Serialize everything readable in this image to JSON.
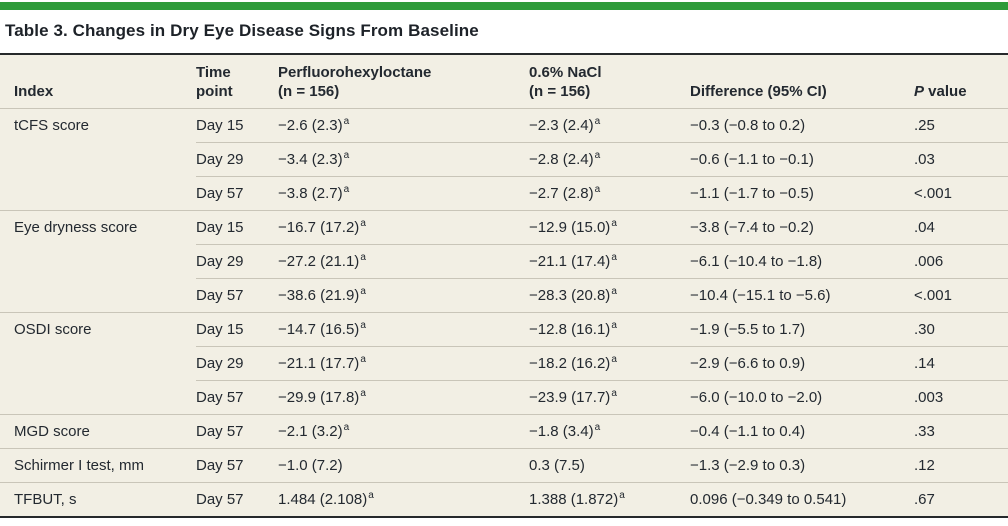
{
  "accent_color": "#2e9b3a",
  "table": {
    "title": "Table 3. Changes in Dry Eye Disease Signs From Baseline",
    "header": {
      "index": "Index",
      "time_line1": "Time",
      "time_line2": "point",
      "pfho_line1": "Perfluorohexyloctane",
      "pfho_line2": "(n = 156)",
      "nacl_line1": "0.6% NaCl",
      "nacl_line2": "(n = 156)",
      "difference": "Difference (95% CI)",
      "p_italic": "P",
      "p_rest": " value"
    },
    "footnote_marker": "a",
    "rows": [
      {
        "index": "tCFS score",
        "time": "Day 15",
        "pfho": "−2.6 (2.3)",
        "pfho_sup": "a",
        "nacl": "−2.3 (2.4)",
        "nacl_sup": "a",
        "diff": "−0.3 (−0.8 to 0.2)",
        "p": ".25"
      },
      {
        "index": "",
        "time": "Day 29",
        "pfho": "−3.4 (2.3)",
        "pfho_sup": "a",
        "nacl": "−2.8 (2.4)",
        "nacl_sup": "a",
        "diff": "−0.6 (−1.1 to −0.1)",
        "p": ".03"
      },
      {
        "index": "",
        "time": "Day 57",
        "pfho": "−3.8 (2.7)",
        "pfho_sup": "a",
        "nacl": "−2.7 (2.8)",
        "nacl_sup": "a",
        "diff": "−1.1 (−1.7 to −0.5)",
        "p": "<.001"
      },
      {
        "index": "Eye dryness score",
        "time": "Day 15",
        "pfho": "−16.7 (17.2)",
        "pfho_sup": "a",
        "nacl": "−12.9 (15.0)",
        "nacl_sup": "a",
        "diff": "−3.8 (−7.4 to −0.2)",
        "p": ".04"
      },
      {
        "index": "",
        "time": "Day 29",
        "pfho": "−27.2 (21.1)",
        "pfho_sup": "a",
        "nacl": "−21.1 (17.4)",
        "nacl_sup": "a",
        "diff": "−6.1 (−10.4 to −1.8)",
        "p": ".006"
      },
      {
        "index": "",
        "time": "Day 57",
        "pfho": "−38.6 (21.9)",
        "pfho_sup": "a",
        "nacl": "−28.3 (20.8)",
        "nacl_sup": "a",
        "diff": "−10.4 (−15.1 to −5.6)",
        "p": "<.001"
      },
      {
        "index": "OSDI score",
        "time": "Day 15",
        "pfho": "−14.7 (16.5)",
        "pfho_sup": "a",
        "nacl": "−12.8 (16.1)",
        "nacl_sup": "a",
        "diff": "−1.9 (−5.5 to 1.7)",
        "p": ".30"
      },
      {
        "index": "",
        "time": "Day 29",
        "pfho": "−21.1 (17.7)",
        "pfho_sup": "a",
        "nacl": "−18.2 (16.2)",
        "nacl_sup": "a",
        "diff": "−2.9 (−6.6 to 0.9)",
        "p": ".14"
      },
      {
        "index": "",
        "time": "Day 57",
        "pfho": "−29.9 (17.8)",
        "pfho_sup": "a",
        "nacl": "−23.9 (17.7)",
        "nacl_sup": "a",
        "diff": "−6.0 (−10.0 to −2.0)",
        "p": ".003"
      },
      {
        "index": "MGD score",
        "time": "Day 57",
        "pfho": "−2.1 (3.2)",
        "pfho_sup": "a",
        "nacl": "−1.8 (3.4)",
        "nacl_sup": "a",
        "diff": "−0.4 (−1.1 to 0.4)",
        "p": ".33"
      },
      {
        "index": "Schirmer I test, mm",
        "time": "Day 57",
        "pfho": "−1.0 (7.2)",
        "pfho_sup": "",
        "nacl": "0.3 (7.5)",
        "nacl_sup": "",
        "diff": "−1.3 (−2.9 to 0.3)",
        "p": ".12"
      },
      {
        "index": "TFBUT, s",
        "time": "Day 57",
        "pfho": "1.484 (2.108)",
        "pfho_sup": "a",
        "nacl": "1.388 (1.872)",
        "nacl_sup": "a",
        "diff": "0.096 (−0.349 to 0.541)",
        "p": ".67"
      }
    ]
  }
}
